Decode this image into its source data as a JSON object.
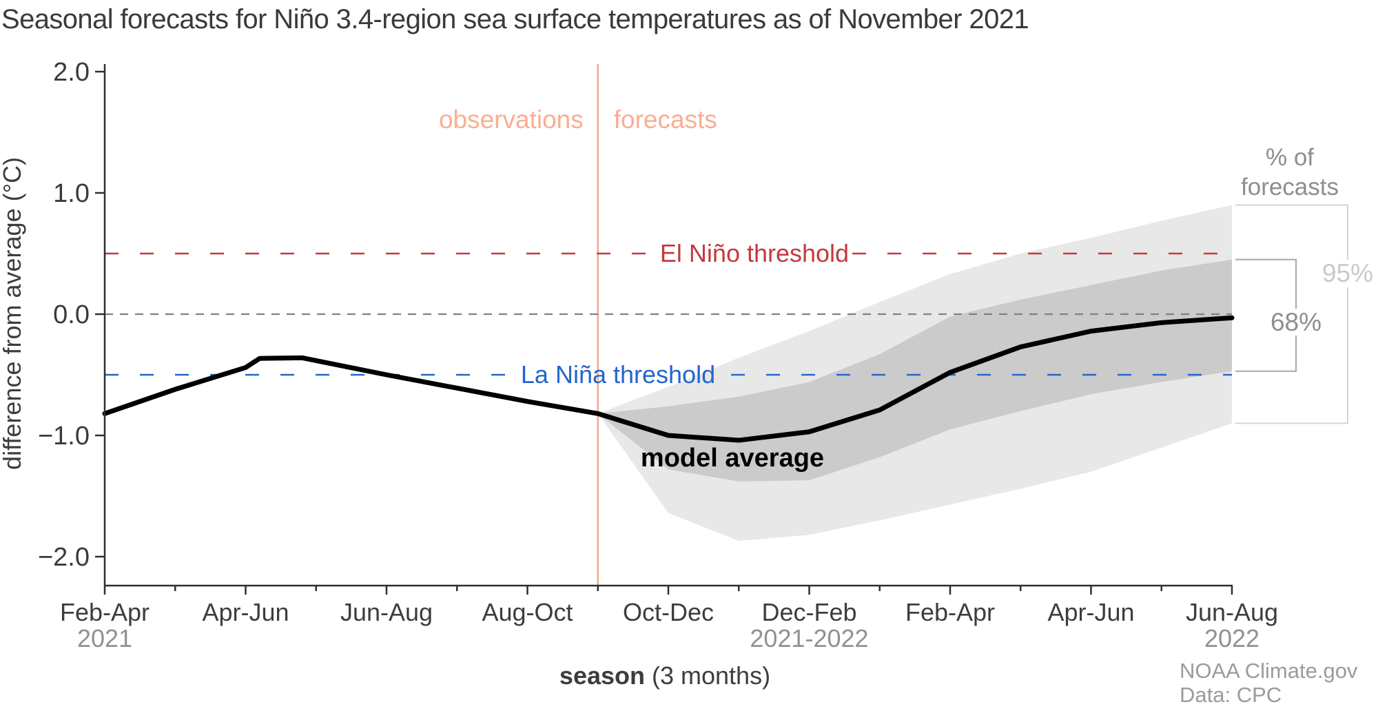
{
  "title": "Seasonal forecasts for Niño 3.4-region sea surface temperatures as of November 2021",
  "attribution": {
    "line1": "NOAA Climate.gov",
    "line2": "Data: CPC"
  },
  "chart_data": {
    "type": "line",
    "title": "Seasonal forecasts for Niño 3.4-region sea surface temperatures as of November 2021",
    "xlabel_bold": "season",
    "xlabel_rest": " (3 months)",
    "ylabel": "difference from average (°C)",
    "ylim": [
      -2.24,
      2.06
    ],
    "grid": "off",
    "x_categories": [
      {
        "season": "Feb-Apr",
        "year": "2021"
      },
      {
        "season": "Apr-Jun"
      },
      {
        "season": "Jun-Aug"
      },
      {
        "season": "Aug-Oct"
      },
      {
        "season": "Oct-Dec"
      },
      {
        "season": "Dec-Feb",
        "year": "2021-2022"
      },
      {
        "season": "Feb-Apr"
      },
      {
        "season": "Apr-Jun"
      },
      {
        "season": "Jun-Aug",
        "year": "2022"
      }
    ],
    "y_ticks": [
      {
        "label": "2.0",
        "value": 2
      },
      {
        "label": "1.0",
        "value": 1
      },
      {
        "label": "0.0",
        "value": 0
      },
      {
        "label": "−1.0",
        "value": -1
      },
      {
        "label": "−2.0",
        "value": -2
      }
    ],
    "divider": {
      "x": 3.5,
      "left_label": "observations",
      "right_label": "forecasts",
      "line_color": "#F5A88D",
      "label_color": "#FBAD92"
    },
    "thresholds": {
      "el_nino": {
        "label": "El Niño threshold",
        "value": 0.5,
        "color": "#C5393B"
      },
      "la_nina": {
        "label": "La Niña threshold",
        "value": -0.5,
        "color": "#2366CE"
      },
      "zero": {
        "value": 0.0,
        "color": "#808080"
      }
    },
    "series": [
      {
        "name": "model average",
        "label": "model average",
        "color": "#000000",
        "observations": [
          [
            0,
            -0.82
          ],
          [
            0.5,
            -0.62
          ],
          [
            1,
            -0.44
          ],
          [
            1.1,
            -0.365
          ],
          [
            1.4,
            -0.36
          ],
          [
            2,
            -0.5
          ],
          [
            2.5,
            -0.61
          ],
          [
            3,
            -0.72
          ],
          [
            3.5,
            -0.82
          ]
        ],
        "forecasts": [
          [
            3.5,
            -0.82
          ],
          [
            4,
            -1.0
          ],
          [
            4.5,
            -1.04
          ],
          [
            5,
            -0.97
          ],
          [
            5.5,
            -0.79
          ],
          [
            6,
            -0.48
          ],
          [
            6.5,
            -0.27
          ],
          [
            7,
            -0.14
          ],
          [
            7.5,
            -0.07
          ],
          [
            8,
            -0.03
          ]
        ]
      }
    ],
    "bands": {
      "header": "% of\nforecasts",
      "header_color": "#8E8E8E",
      "p95": {
        "label": "95%",
        "label_color": "#C9C9C9",
        "fill": "#E8E8E8",
        "bracket_color": "#D5D5D5",
        "end_range": [
          -0.9,
          0.9
        ],
        "points_x_lo_hi": [
          [
            3.5,
            -0.82,
            -0.82
          ],
          [
            4,
            -1.64,
            -0.6
          ],
          [
            4.5,
            -1.87,
            -0.36
          ],
          [
            5,
            -1.82,
            -0.14
          ],
          [
            5.5,
            -1.7,
            0.1
          ],
          [
            6,
            -1.57,
            0.33
          ],
          [
            6.5,
            -1.44,
            0.5
          ],
          [
            7,
            -1.3,
            0.63
          ],
          [
            7.5,
            -1.1,
            0.77
          ],
          [
            8,
            -0.9,
            0.9
          ]
        ]
      },
      "p68": {
        "label": "68%",
        "label_color": "#8E8E8E",
        "fill": "#CBCBCB",
        "bracket_color": "#A8A8A8",
        "end_range": [
          -0.47,
          0.45
        ],
        "points_x_lo_hi": [
          [
            3.5,
            -0.82,
            -0.82
          ],
          [
            4,
            -1.28,
            -0.76
          ],
          [
            4.5,
            -1.38,
            -0.68
          ],
          [
            5,
            -1.37,
            -0.56
          ],
          [
            5.5,
            -1.18,
            -0.33
          ],
          [
            6,
            -0.95,
            -0.02
          ],
          [
            6.5,
            -0.8,
            0.12
          ],
          [
            7,
            -0.66,
            0.24
          ],
          [
            7.5,
            -0.56,
            0.36
          ],
          [
            8,
            -0.47,
            0.45
          ]
        ]
      }
    },
    "colors": {
      "axis": "#2E2E2E",
      "tick_label": "#3a3a3a",
      "x_label": "#3d3d3d",
      "year_label": "#919191",
      "axis_title": "#3d3d3d"
    }
  }
}
